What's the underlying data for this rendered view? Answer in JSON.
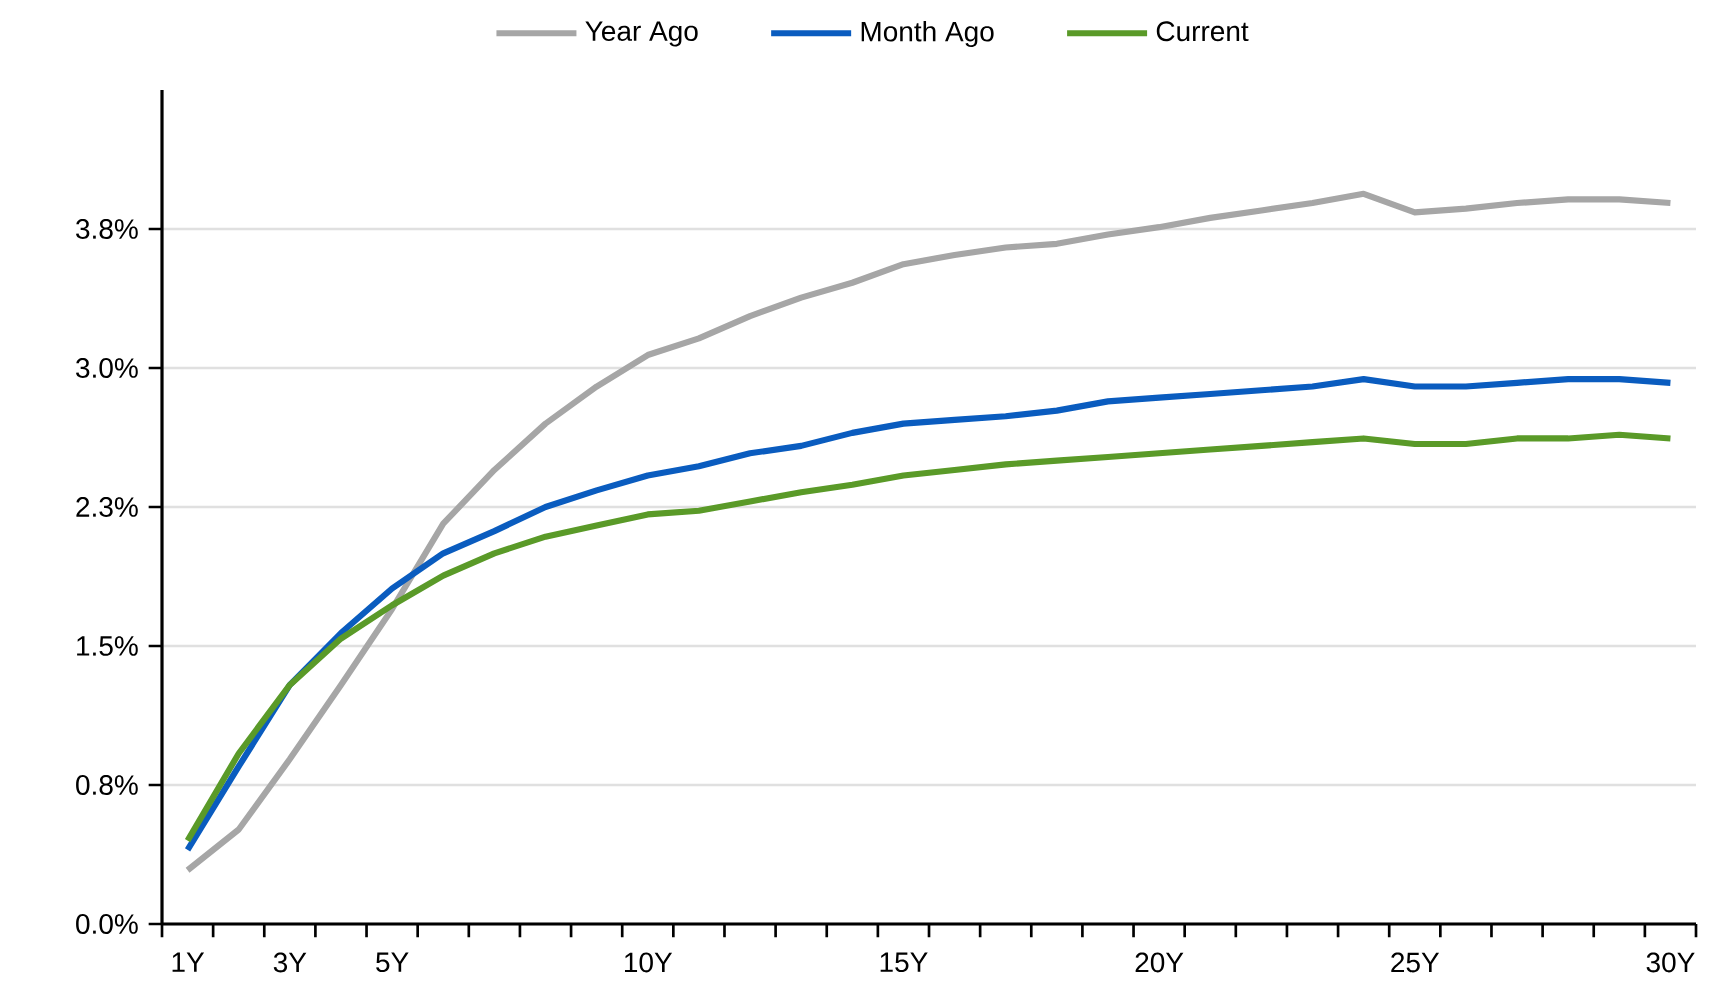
{
  "chart_data": {
    "type": "line",
    "categories": [
      "1Y",
      null,
      "3Y",
      null,
      "5Y",
      null,
      null,
      null,
      null,
      "10Y",
      null,
      null,
      null,
      null,
      "15Y",
      null,
      null,
      null,
      null,
      "20Y",
      null,
      null,
      null,
      null,
      "25Y",
      null,
      null,
      null,
      null,
      "30Y"
    ],
    "series": [
      {
        "name": "Year Ago",
        "color": "#a6a6a6",
        "values": [
          0.29,
          0.51,
          0.89,
          1.29,
          1.7,
          2.16,
          2.45,
          2.7,
          2.9,
          3.07,
          3.16,
          3.28,
          3.38,
          3.46,
          3.56,
          3.61,
          3.65,
          3.67,
          3.72,
          3.76,
          3.81,
          3.85,
          3.89,
          3.94,
          3.84,
          3.86,
          3.89,
          3.91,
          3.91,
          3.89
        ]
      },
      {
        "name": "Month Ago",
        "color": "#0a5cbf",
        "values": [
          0.4,
          0.85,
          1.29,
          1.57,
          1.81,
          2.0,
          2.12,
          2.25,
          2.34,
          2.42,
          2.47,
          2.54,
          2.58,
          2.65,
          2.7,
          2.72,
          2.74,
          2.77,
          2.82,
          2.84,
          2.86,
          2.88,
          2.9,
          2.94,
          2.9,
          2.9,
          2.92,
          2.94,
          2.94,
          2.92
        ]
      },
      {
        "name": "Current",
        "color": "#5a9a28",
        "values": [
          0.45,
          0.92,
          1.29,
          1.54,
          1.72,
          1.88,
          2.0,
          2.09,
          2.15,
          2.21,
          2.23,
          2.28,
          2.33,
          2.37,
          2.42,
          2.45,
          2.48,
          2.5,
          2.52,
          2.54,
          2.56,
          2.58,
          2.6,
          2.62,
          2.59,
          2.59,
          2.62,
          2.62,
          2.64,
          2.62
        ]
      }
    ],
    "ylim": [
      0,
      4.5
    ],
    "yticks": [
      {
        "value": 0,
        "label": "0.0%"
      },
      {
        "value": 0.75,
        "label": "0.8%"
      },
      {
        "value": 1.5,
        "label": "1.5%"
      },
      {
        "value": 2.25,
        "label": "2.3%"
      },
      {
        "value": 3.0,
        "label": "3.0%"
      },
      {
        "value": 3.75,
        "label": "3.8%"
      }
    ],
    "grid": "y",
    "legend": "top",
    "marker": "none",
    "line_style": "solid"
  }
}
